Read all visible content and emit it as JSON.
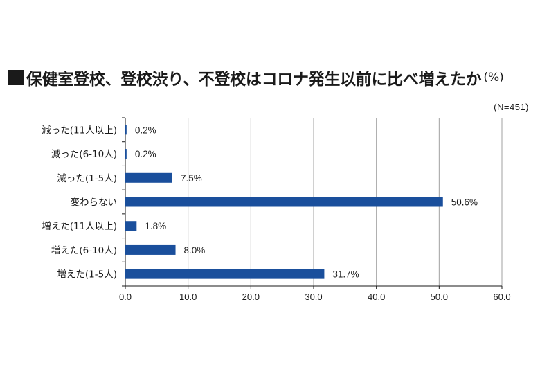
{
  "title": "保健室登校、登校渋り、不登校はコロナ発生以前に比べ増えたか",
  "unit": "(%)",
  "sample_note": "(N=451)",
  "colors": {
    "bar": "#1a4f9c",
    "grid": "#a0a0a0",
    "axis": "#1a1a1a"
  },
  "chart_data": {
    "type": "bar",
    "orientation": "horizontal",
    "title": "保健室登校、登校渋り、不登校はコロナ発生以前に比べ増えたか",
    "categories": [
      "減った(11人以上)",
      "減った(6-10人)",
      "減った(1-5人)",
      "変わらない",
      "増えた(11人以上)",
      "増えた(6-10人)",
      "増えた(1-5人)"
    ],
    "values": [
      0.2,
      0.2,
      7.5,
      50.6,
      1.8,
      8.0,
      31.7
    ],
    "value_labels": [
      "0.2%",
      "0.2%",
      "7.5%",
      "50.6%",
      "1.8%",
      "8.0%",
      "31.7%"
    ],
    "xlim": [
      0,
      60
    ],
    "xticks": [
      "0.0",
      "10.0",
      "20.0",
      "30.0",
      "40.0",
      "50.0",
      "60.0"
    ],
    "grid": true
  }
}
